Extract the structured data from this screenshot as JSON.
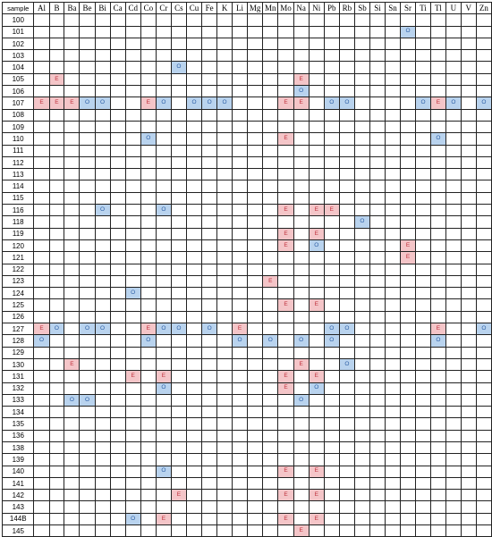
{
  "header_label": "sample",
  "elements": [
    "Al",
    "B",
    "Ba",
    "Be",
    "Bi",
    "Ca",
    "Cd",
    "Co",
    "Cr",
    "Cs",
    "Cu",
    "Fe",
    "K",
    "Li",
    "Mg",
    "Mn",
    "Mo",
    "Na",
    "Ni",
    "Pb",
    "Rb",
    "Sb",
    "Si",
    "Sn",
    "Sr",
    "Ti",
    "Tl",
    "U",
    "V",
    "Zn"
  ],
  "colors": {
    "E_fill": "#f4c5c8",
    "E_text": "#c0303b",
    "O_fill": "#b9d3ee",
    "O_text": "#2d5fa6"
  },
  "rows": [
    {
      "sample": "100",
      "marks": {}
    },
    {
      "sample": "101",
      "marks": {
        "Sr": "O"
      }
    },
    {
      "sample": "102",
      "marks": {}
    },
    {
      "sample": "103",
      "marks": {}
    },
    {
      "sample": "104",
      "marks": {
        "Cs": "O"
      }
    },
    {
      "sample": "105",
      "marks": {
        "B": "E",
        "Na": "E"
      }
    },
    {
      "sample": "106",
      "marks": {
        "Na": "O"
      }
    },
    {
      "sample": "107",
      "marks": {
        "Al": "E",
        "B": "E",
        "Ba": "E",
        "Be": "O",
        "Bi": "O",
        "Co": "E",
        "Cr": "O",
        "Cu": "O",
        "Fe": "O",
        "K": "O",
        "Mo": "E",
        "Na": "E",
        "Pb": "O",
        "Rb": "O",
        "Ti": "O",
        "Tl": "E",
        "U": "O",
        "Zn": "O"
      }
    },
    {
      "sample": "108",
      "marks": {}
    },
    {
      "sample": "109",
      "marks": {}
    },
    {
      "sample": "110",
      "marks": {
        "Co": "O",
        "Mo": "E",
        "Tl": "O"
      }
    },
    {
      "sample": "111",
      "marks": {}
    },
    {
      "sample": "112",
      "marks": {}
    },
    {
      "sample": "113",
      "marks": {}
    },
    {
      "sample": "114",
      "marks": {}
    },
    {
      "sample": "115",
      "marks": {}
    },
    {
      "sample": "116",
      "marks": {
        "Bi": "O",
        "Cr": "O",
        "Mo": "E",
        "Ni": "E",
        "Pb": "E"
      }
    },
    {
      "sample": "118",
      "marks": {
        "Sb": "O"
      }
    },
    {
      "sample": "119",
      "marks": {
        "Mo": "E",
        "Ni": "E"
      }
    },
    {
      "sample": "120",
      "marks": {
        "Mo": "E",
        "Ni": "O",
        "Sr": "E"
      }
    },
    {
      "sample": "121",
      "marks": {
        "Sr": "E"
      }
    },
    {
      "sample": "122",
      "marks": {}
    },
    {
      "sample": "123",
      "marks": {
        "Mn": "E"
      }
    },
    {
      "sample": "124",
      "marks": {
        "Cd": "O"
      }
    },
    {
      "sample": "125",
      "marks": {
        "Mo": "E",
        "Ni": "E"
      }
    },
    {
      "sample": "126",
      "marks": {}
    },
    {
      "sample": "127",
      "marks": {
        "Al": "E",
        "B": "O",
        "Be": "O",
        "Bi": "O",
        "Co": "E",
        "Cr": "O",
        "Cs": "O",
        "Fe": "O",
        "Li": "E",
        "Pb": "O",
        "Rb": "O",
        "Tl": "E",
        "Zn": "O"
      }
    },
    {
      "sample": "128",
      "marks": {
        "Al": "O",
        "Co": "O",
        "Li": "O",
        "Mn": "O",
        "Na": "O",
        "Pb": "O",
        "Tl": "O"
      }
    },
    {
      "sample": "129",
      "marks": {}
    },
    {
      "sample": "130",
      "marks": {
        "Ba": "E",
        "Na": "E",
        "Rb": "O"
      }
    },
    {
      "sample": "131",
      "marks": {
        "Cd": "E",
        "Cr": "E",
        "Mo": "E",
        "Ni": "E"
      }
    },
    {
      "sample": "132",
      "marks": {
        "Cr": "O",
        "Mo": "E",
        "Ni": "O"
      }
    },
    {
      "sample": "133",
      "marks": {
        "Ba": "O",
        "Be": "O",
        "Na": "O"
      }
    },
    {
      "sample": "134",
      "marks": {}
    },
    {
      "sample": "135",
      "marks": {}
    },
    {
      "sample": "136",
      "marks": {}
    },
    {
      "sample": "138",
      "marks": {}
    },
    {
      "sample": "139",
      "marks": {}
    },
    {
      "sample": "140",
      "marks": {
        "Cr": "O",
        "Mo": "E",
        "Ni": "E"
      }
    },
    {
      "sample": "141",
      "marks": {}
    },
    {
      "sample": "142",
      "marks": {
        "Cs": "E",
        "Mo": "E",
        "Ni": "E"
      }
    },
    {
      "sample": "143",
      "marks": {}
    },
    {
      "sample": "144B",
      "marks": {
        "Cd": "O",
        "Cr": "E",
        "Mo": "E",
        "Ni": "E"
      }
    },
    {
      "sample": "145",
      "marks": {
        "Na": "E"
      }
    }
  ]
}
